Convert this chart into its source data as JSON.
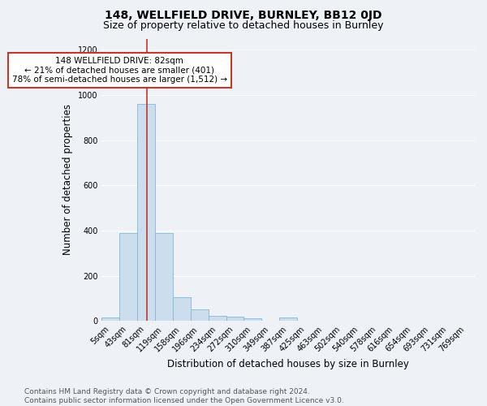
{
  "title1": "148, WELLFIELD DRIVE, BURNLEY, BB12 0JD",
  "title2": "Size of property relative to detached houses in Burnley",
  "xlabel": "Distribution of detached houses by size in Burnley",
  "ylabel": "Number of detached properties",
  "bar_labels": [
    "5sqm",
    "43sqm",
    "81sqm",
    "119sqm",
    "158sqm",
    "196sqm",
    "234sqm",
    "272sqm",
    "310sqm",
    "349sqm",
    "387sqm",
    "425sqm",
    "463sqm",
    "502sqm",
    "540sqm",
    "578sqm",
    "616sqm",
    "654sqm",
    "693sqm",
    "731sqm",
    "769sqm"
  ],
  "bar_values": [
    15,
    390,
    960,
    390,
    105,
    50,
    22,
    18,
    12,
    0,
    14,
    0,
    0,
    0,
    0,
    0,
    0,
    0,
    0,
    0,
    0
  ],
  "bar_color": "#ccdded",
  "bar_edge_color": "#7fb8d8",
  "vline_color": "#c0392b",
  "annotation_text": "148 WELLFIELD DRIVE: 82sqm\n← 21% of detached houses are smaller (401)\n78% of semi-detached houses are larger (1,512) →",
  "annotation_box_facecolor": "#ffffff",
  "annotation_box_edgecolor": "#c0392b",
  "ylim": [
    0,
    1250
  ],
  "yticks": [
    0,
    200,
    400,
    600,
    800,
    1000,
    1200
  ],
  "footnote": "Contains HM Land Registry data © Crown copyright and database right 2024.\nContains public sector information licensed under the Open Government Licence v3.0.",
  "bg_color": "#eef2f7",
  "plot_bg_color": "#eef2f7",
  "grid_color": "#ffffff",
  "title1_fontsize": 10,
  "title2_fontsize": 9,
  "xlabel_fontsize": 8.5,
  "ylabel_fontsize": 8.5,
  "tick_fontsize": 7,
  "annotation_fontsize": 7.5,
  "footnote_fontsize": 6.5
}
